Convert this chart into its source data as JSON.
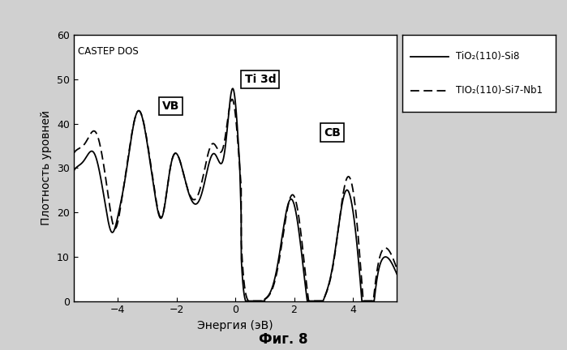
{
  "title": "CASTEP DOS",
  "xlabel": "Энергия (эВ)",
  "ylabel": "Плотность уровней",
  "xlim": [
    -5.5,
    5.5
  ],
  "ylim": [
    0,
    60
  ],
  "xticks": [
    -4,
    -2,
    0,
    2,
    4
  ],
  "yticks": [
    0,
    10,
    20,
    30,
    40,
    50,
    60
  ],
  "legend_solid": "TiO₂(110)-Si8",
  "legend_dashed": "TIO₂(110)-Si7-Nb1",
  "label_VB": "VB",
  "label_Ti3d": "Ti 3d",
  "label_CB": "CB",
  "fig_caption": "Фиг. 8",
  "background_color": "#ffffff",
  "line_color": "#000000",
  "outer_bg": "#d0d0d0"
}
